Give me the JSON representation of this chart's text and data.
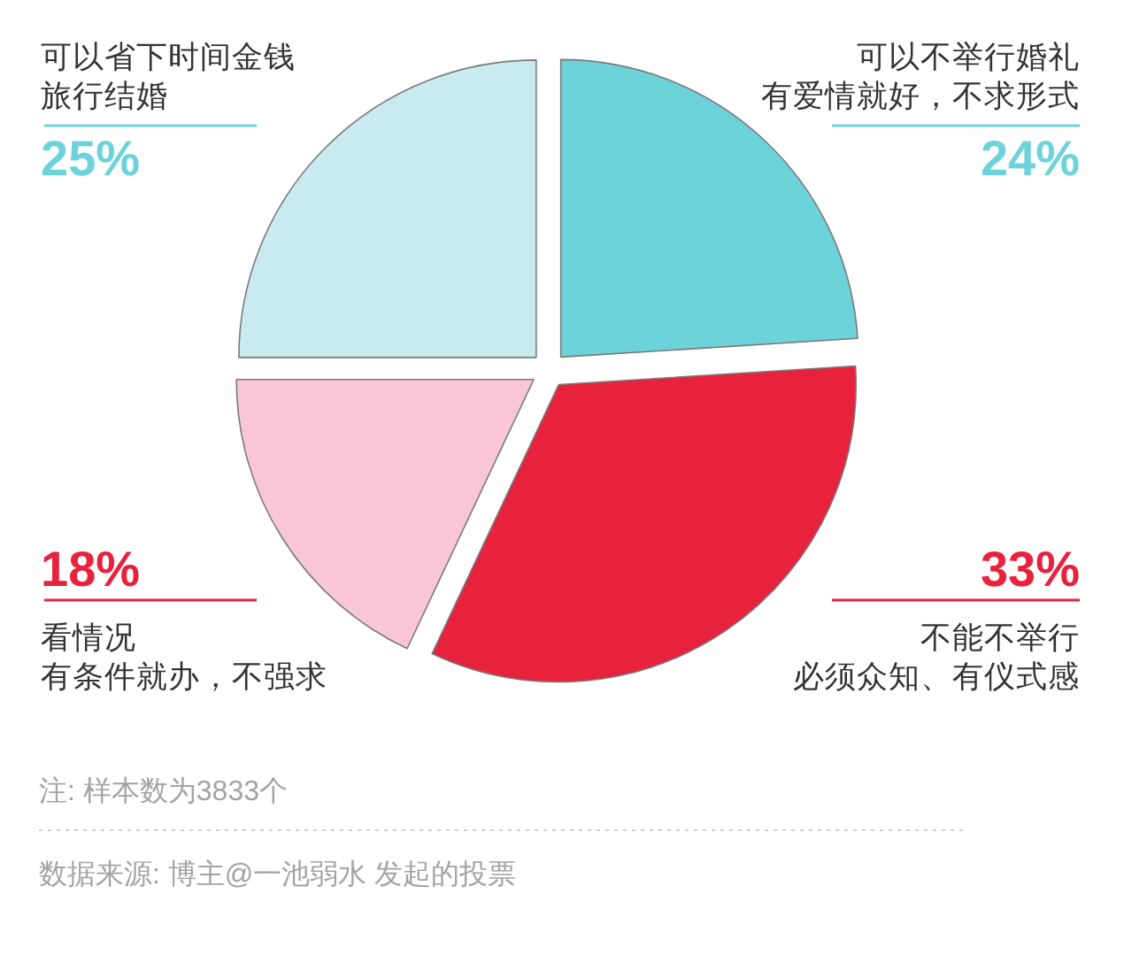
{
  "chart_data": {
    "type": "pie",
    "categories": [
      "可以不举行婚礼",
      "不能不举行",
      "看情况",
      "可以省下时间金钱"
    ],
    "values": [
      24,
      33,
      18,
      25
    ],
    "colors": [
      "#6dd3db",
      "#e8223d",
      "#f9c6d7",
      "#c8eaf0"
    ],
    "value_labels": [
      "24%",
      "33%",
      "18%",
      "25%"
    ],
    "annotations": [
      {
        "text": "有爱情就好，不求形式",
        "x": "可以不举行婚礼"
      },
      {
        "text": "必须众知、有仪式感",
        "x": "不能不举行"
      },
      {
        "text": "有条件就办，不强求",
        "x": "看情况"
      },
      {
        "text": "旅行结婚",
        "x": "可以省下时间金钱"
      },
      "注: 样本数为3833个",
      "数据来源: 博主@一池弱水 发起的投票"
    ]
  }
}
